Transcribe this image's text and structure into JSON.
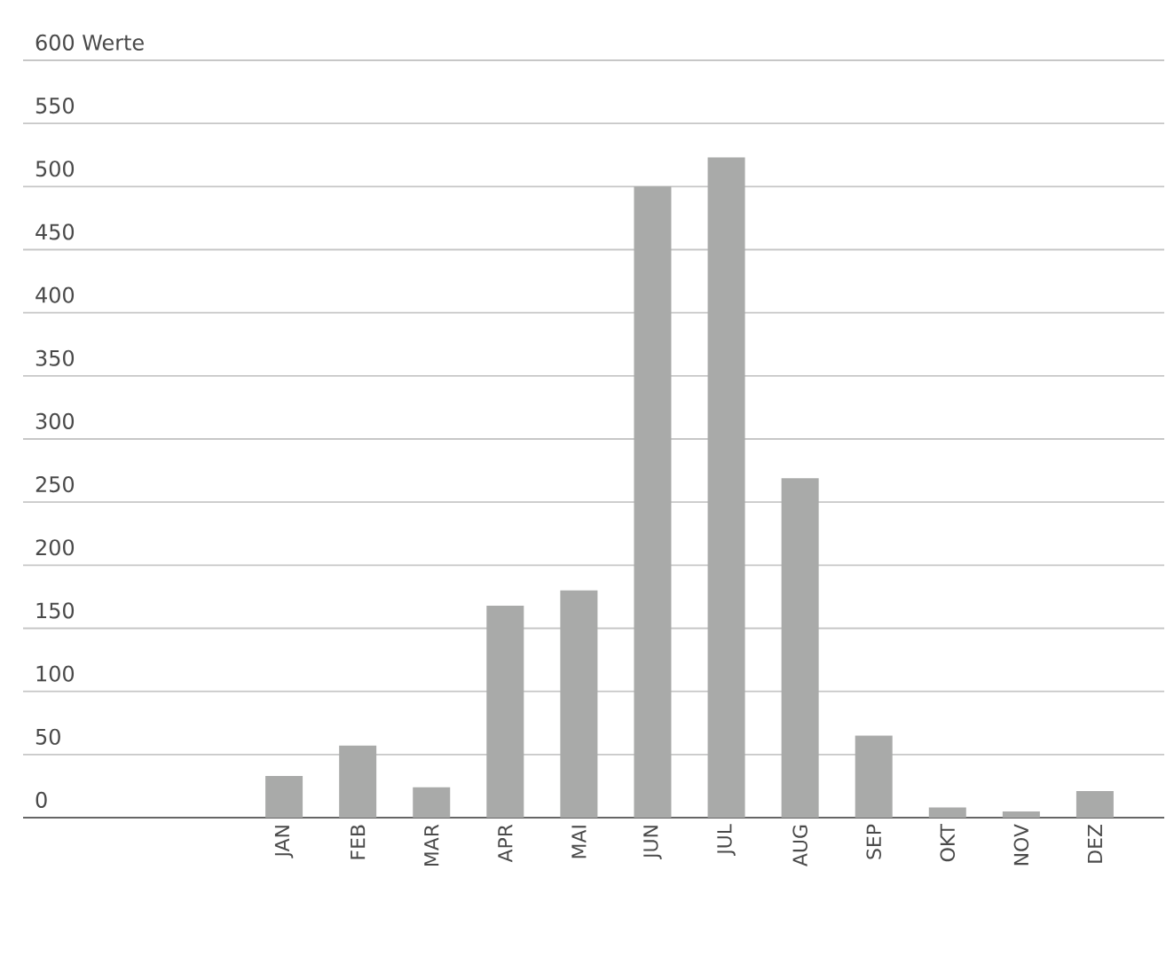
{
  "chart_data": {
    "type": "bar",
    "categories": [
      "JAN",
      "FEB",
      "MAR",
      "APR",
      "MAI",
      "JUN",
      "JUL",
      "AUG",
      "SEP",
      "OKT",
      "NOV",
      "DEZ"
    ],
    "values": [
      33,
      57,
      24,
      168,
      180,
      500,
      523,
      269,
      65,
      8,
      5,
      21
    ],
    "color": "#a9aaa9",
    "ylim": [
      0,
      600
    ],
    "yticks": [
      0,
      50,
      100,
      150,
      200,
      250,
      300,
      350,
      400,
      450,
      500,
      550,
      {
        "value": 600,
        "label": "600 Werte"
      }
    ],
    "grid": "y"
  }
}
